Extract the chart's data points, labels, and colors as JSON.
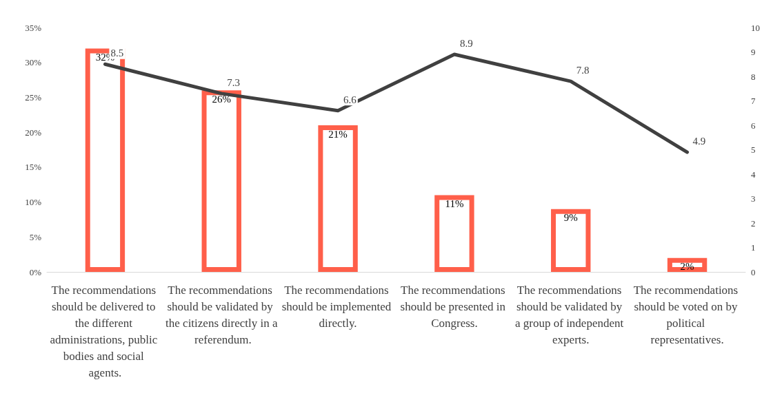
{
  "chart_data": {
    "type": "bar",
    "categories": [
      "The recommendations should be delivered to the different administrations, public bodies and social agents.",
      "The recommendations should be validated by the citizens directly in a referendum.",
      "The recommendations should be implemented directly.",
      "The recommendations should be presented in Congress.",
      "The recommendations should be validated by a group of independent experts.",
      "The recommendations should be voted on by political representatives."
    ],
    "series": [
      {
        "color": "#ff5f4a",
        "values": [
          32,
          26,
          21,
          11,
          9,
          2
        ],
        "value_labels": [
          "32%",
          "26%",
          "21%",
          "11%",
          "9%",
          "2%"
        ]
      },
      {
        "type": "line",
        "axis": "y2",
        "color": "#404040",
        "values": [
          8.5,
          7.3,
          6.6,
          8.9,
          7.8,
          4.9
        ],
        "value_labels": [
          "8.5",
          "7.3",
          "6.6",
          "8.9",
          "7.8",
          "4.9"
        ]
      }
    ],
    "ylim": [
      0,
      35
    ],
    "yticks": [
      {
        "value": 0,
        "label": "0%"
      },
      {
        "value": 5,
        "label": "5%"
      },
      {
        "value": 10,
        "label": "10%"
      },
      {
        "value": 15,
        "label": "15%"
      },
      {
        "value": 20,
        "label": "20%"
      },
      {
        "value": 25,
        "label": "25%"
      },
      {
        "value": 30,
        "label": "30%"
      },
      {
        "value": 35,
        "label": "35%"
      }
    ],
    "y2lim": [
      0,
      10
    ],
    "y2ticks": [
      0,
      1,
      2,
      3,
      4,
      5,
      6,
      7,
      8,
      9,
      10
    ],
    "grid": false,
    "marker": "none",
    "line_style": "solid"
  }
}
